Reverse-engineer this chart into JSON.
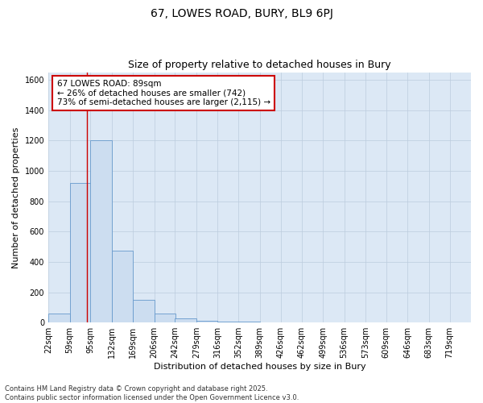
{
  "title_line1": "67, LOWES ROAD, BURY, BL9 6PJ",
  "title_line2": "Size of property relative to detached houses in Bury",
  "xlabel": "Distribution of detached houses by size in Bury",
  "ylabel": "Number of detached properties",
  "bin_edges": [
    22,
    59,
    95,
    132,
    169,
    206,
    242,
    279,
    316,
    352,
    389,
    426,
    462,
    499,
    536,
    573,
    609,
    646,
    683,
    719,
    756
  ],
  "bar_heights": [
    60,
    920,
    1200,
    475,
    150,
    60,
    30,
    10,
    5,
    5,
    0,
    0,
    0,
    0,
    0,
    0,
    0,
    0,
    0,
    0
  ],
  "bar_color": "#ccddf0",
  "bar_edge_color": "#6699cc",
  "property_size": 89,
  "vline_color": "#cc0000",
  "annotation_text": "67 LOWES ROAD: 89sqm\n← 26% of detached houses are smaller (742)\n73% of semi-detached houses are larger (2,115) →",
  "annotation_box_color": "#cc0000",
  "ylim": [
    0,
    1650
  ],
  "yticks": [
    0,
    200,
    400,
    600,
    800,
    1000,
    1200,
    1400,
    1600
  ],
  "grid_color": "#bbccdd",
  "bg_color": "#dce8f5",
  "footer_line1": "Contains HM Land Registry data © Crown copyright and database right 2025.",
  "footer_line2": "Contains public sector information licensed under the Open Government Licence v3.0.",
  "title_fontsize": 10,
  "subtitle_fontsize": 9,
  "axis_label_fontsize": 8,
  "tick_fontsize": 7,
  "annotation_fontsize": 7.5,
  "footer_fontsize": 6
}
